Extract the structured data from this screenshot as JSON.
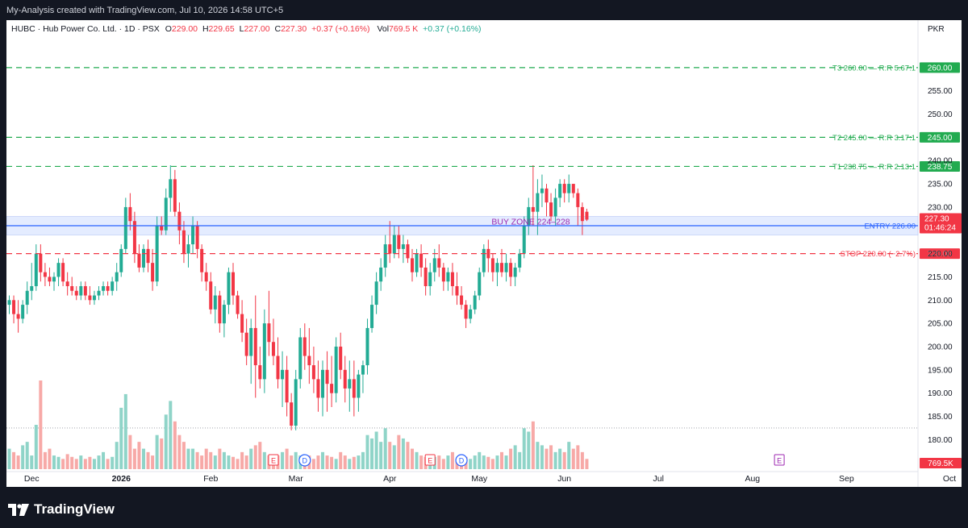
{
  "caption": "My-Analysis created with TradingView.com, Jul 10, 2026 14:58 UTC+5",
  "brand": "TradingView",
  "legend": {
    "symbol": "HUBC · Hub Power Co. Ltd. · 1D · PSX",
    "o_label": "O",
    "o_value": "229.00",
    "h_label": "H",
    "h_value": "229.65",
    "l_label": "L",
    "l_value": "227.00",
    "c_label": "C",
    "c_value": "227.30",
    "change": "+0.37 (+0.16%)",
    "vol_label": "Vol",
    "vol_value": "769.5 K",
    "vol_change": "+0.37 (+0.16%)"
  },
  "colors": {
    "up": "#22ab94",
    "down": "#f23645",
    "vol_up": "#8fd4c8",
    "vol_down": "#f7a9a7",
    "target": "#22ab50",
    "stop": "#f23645",
    "entry": "#2962ff",
    "zone_fill": "#dbe6ff",
    "zone_text": "#9c27b0",
    "last_price": "#f23645"
  },
  "chart_data": {
    "type": "candlestick",
    "currency": "PKR",
    "y_axis": {
      "range": [
        174,
        265
      ],
      "ticks": [
        180.0,
        185.0,
        190.0,
        195.0,
        200.0,
        205.0,
        210.0,
        215.0,
        220.0,
        225.0,
        230.0,
        235.0,
        240.0,
        250.0,
        255.0
      ],
      "tick_labels": [
        "180.00",
        "185.00",
        "190.00",
        "195.00",
        "200.00",
        "205.00",
        "210.00",
        "215.00",
        "220.00",
        "225.00",
        "230.00",
        "235.00",
        "240.00",
        "250.00",
        "255.00"
      ]
    },
    "x_axis": {
      "labels": [
        {
          "text": "Dec",
          "bar": 5,
          "bold": false
        },
        {
          "text": "2026",
          "bar": 25,
          "bold": true
        },
        {
          "text": "Feb",
          "bar": 45,
          "bold": false
        },
        {
          "text": "Mar",
          "bar": 64,
          "bold": false
        },
        {
          "text": "Apr",
          "bar": 85,
          "bold": false
        },
        {
          "text": "May",
          "bar": 105,
          "bold": false
        },
        {
          "text": "Jun",
          "bar": 124,
          "bold": false
        },
        {
          "text": "Jul",
          "bar": 145,
          "bold": false
        },
        {
          "text": "Aug",
          "bar": 166,
          "bold": false
        },
        {
          "text": "Sep",
          "bar": 187,
          "bold": false
        },
        {
          "text": "Oct",
          "bar": 210,
          "bold": false
        }
      ]
    },
    "ohlc": [
      [
        209,
        211,
        207,
        210
      ],
      [
        210,
        211,
        205,
        207
      ],
      [
        207,
        210,
        203,
        206
      ],
      [
        206,
        210,
        205,
        209
      ],
      [
        209,
        214,
        207,
        212
      ],
      [
        212,
        218,
        210,
        213
      ],
      [
        213,
        222,
        212,
        220
      ],
      [
        220,
        222,
        214,
        216
      ],
      [
        216,
        218,
        213,
        215
      ],
      [
        215,
        217,
        213,
        214
      ],
      [
        214,
        216,
        212,
        215
      ],
      [
        215,
        219,
        213,
        218
      ],
      [
        218,
        219,
        213,
        214
      ],
      [
        214,
        216,
        211,
        213
      ],
      [
        213,
        215,
        211,
        212
      ],
      [
        212,
        213,
        210,
        211
      ],
      [
        211,
        214,
        210,
        213
      ],
      [
        213,
        214,
        210,
        211
      ],
      [
        211,
        213,
        209,
        210
      ],
      [
        210,
        212,
        209,
        211
      ],
      [
        211,
        213,
        210,
        212
      ],
      [
        212,
        214,
        211,
        213
      ],
      [
        213,
        214,
        211,
        212
      ],
      [
        212,
        215,
        211,
        214
      ],
      [
        214,
        218,
        212,
        216
      ],
      [
        216,
        222,
        215,
        221
      ],
      [
        221,
        232,
        220,
        230
      ],
      [
        230,
        233,
        225,
        227
      ],
      [
        227,
        229,
        218,
        220
      ],
      [
        220,
        222,
        216,
        217
      ],
      [
        217,
        222,
        216,
        221
      ],
      [
        221,
        223,
        216,
        218
      ],
      [
        218,
        221,
        212,
        214
      ],
      [
        214,
        228,
        213,
        226
      ],
      [
        226,
        228,
        224,
        225
      ],
      [
        225,
        234,
        224,
        232
      ],
      [
        232,
        239,
        229,
        236
      ],
      [
        236,
        238,
        228,
        229
      ],
      [
        229,
        231,
        222,
        225
      ],
      [
        225,
        227,
        218,
        220
      ],
      [
        220,
        224,
        217,
        222
      ],
      [
        222,
        228,
        220,
        226
      ],
      [
        226,
        227,
        219,
        221
      ],
      [
        221,
        222,
        214,
        216
      ],
      [
        216,
        218,
        212,
        214
      ],
      [
        214,
        216,
        207,
        208
      ],
      [
        208,
        213,
        205,
        211
      ],
      [
        211,
        212,
        203,
        205
      ],
      [
        205,
        210,
        202,
        209
      ],
      [
        209,
        217,
        207,
        216
      ],
      [
        216,
        218,
        209,
        211
      ],
      [
        211,
        212,
        206,
        207
      ],
      [
        207,
        210,
        201,
        203
      ],
      [
        203,
        206,
        196,
        198
      ],
      [
        198,
        206,
        192,
        204
      ],
      [
        204,
        211,
        189,
        196
      ],
      [
        196,
        200,
        191,
        193
      ],
      [
        193,
        208,
        190,
        205
      ],
      [
        205,
        212,
        198,
        201
      ],
      [
        201,
        206,
        196,
        198
      ],
      [
        198,
        202,
        191,
        193
      ],
      [
        193,
        199,
        187,
        195
      ],
      [
        195,
        198,
        185,
        188
      ],
      [
        188,
        190,
        182,
        183
      ],
      [
        183,
        195,
        182,
        193
      ],
      [
        193,
        204,
        191,
        202
      ],
      [
        202,
        205,
        195,
        198
      ],
      [
        198,
        204,
        192,
        196
      ],
      [
        196,
        200,
        190,
        193
      ],
      [
        193,
        197,
        186,
        189
      ],
      [
        189,
        197,
        185,
        195
      ],
      [
        195,
        199,
        186,
        192
      ],
      [
        192,
        198,
        187,
        190
      ],
      [
        190,
        202,
        188,
        200
      ],
      [
        200,
        203,
        193,
        195
      ],
      [
        195,
        198,
        188,
        191
      ],
      [
        191,
        197,
        186,
        193
      ],
      [
        193,
        197,
        185,
        189
      ],
      [
        189,
        195,
        186,
        194
      ],
      [
        194,
        197,
        190,
        196
      ],
      [
        196,
        206,
        194,
        204
      ],
      [
        204,
        211,
        203,
        209
      ],
      [
        209,
        216,
        207,
        214
      ],
      [
        214,
        219,
        212,
        217
      ],
      [
        217,
        224,
        215,
        222
      ],
      [
        222,
        227,
        218,
        220
      ],
      [
        220,
        226,
        219,
        224
      ],
      [
        224,
        226,
        219,
        221
      ],
      [
        221,
        224,
        218,
        222
      ],
      [
        222,
        223,
        218,
        219
      ],
      [
        219,
        221,
        214,
        216
      ],
      [
        216,
        221,
        215,
        220
      ],
      [
        220,
        222,
        215,
        217
      ],
      [
        217,
        219,
        211,
        213
      ],
      [
        213,
        218,
        211,
        216
      ],
      [
        216,
        221,
        214,
        219
      ],
      [
        219,
        222,
        215,
        217
      ],
      [
        217,
        218,
        212,
        214
      ],
      [
        214,
        217,
        212,
        216
      ],
      [
        216,
        218,
        211,
        213
      ],
      [
        213,
        216,
        209,
        211
      ],
      [
        211,
        213,
        208,
        209
      ],
      [
        209,
        210,
        204,
        206
      ],
      [
        206,
        209,
        205,
        208
      ],
      [
        208,
        212,
        207,
        211
      ],
      [
        211,
        217,
        210,
        216
      ],
      [
        216,
        222,
        215,
        221
      ],
      [
        221,
        223,
        216,
        219
      ],
      [
        219,
        220,
        214,
        216
      ],
      [
        216,
        219,
        213,
        218
      ],
      [
        218,
        221,
        215,
        216
      ],
      [
        216,
        220,
        214,
        218
      ],
      [
        218,
        219,
        213,
        215
      ],
      [
        215,
        218,
        213,
        217
      ],
      [
        217,
        221,
        216,
        220
      ],
      [
        220,
        228,
        219,
        226
      ],
      [
        226,
        232,
        224,
        230
      ],
      [
        230,
        239,
        226,
        229
      ],
      [
        229,
        236,
        224,
        233
      ],
      [
        233,
        237,
        230,
        234
      ],
      [
        234,
        235,
        228,
        231
      ],
      [
        231,
        233,
        227,
        228
      ],
      [
        228,
        234,
        226,
        232
      ],
      [
        232,
        236,
        230,
        235
      ],
      [
        235,
        236,
        231,
        233
      ],
      [
        233,
        237,
        231,
        235
      ],
      [
        235,
        235,
        232,
        233
      ],
      [
        233,
        234,
        226,
        230
      ],
      [
        230,
        231,
        224,
        227
      ],
      [
        229,
        229.65,
        227,
        227.3
      ]
    ],
    "volume": [
      30,
      25,
      20,
      35,
      40,
      20,
      65,
      130,
      25,
      30,
      20,
      18,
      15,
      22,
      18,
      15,
      20,
      15,
      18,
      15,
      20,
      25,
      15,
      18,
      40,
      90,
      110,
      50,
      30,
      40,
      30,
      25,
      20,
      50,
      45,
      80,
      100,
      70,
      50,
      40,
      30,
      30,
      25,
      20,
      30,
      25,
      20,
      30,
      25,
      20,
      18,
      15,
      25,
      20,
      30,
      35,
      40,
      25,
      20,
      15,
      20,
      25,
      30,
      20,
      25,
      20,
      18,
      20,
      15,
      20,
      25,
      20,
      18,
      15,
      25,
      20,
      15,
      18,
      20,
      25,
      50,
      45,
      55,
      40,
      60,
      40,
      35,
      50,
      45,
      40,
      30,
      25,
      20,
      18,
      15,
      18,
      20,
      15,
      20,
      25,
      15,
      20,
      18,
      15,
      20,
      25,
      20,
      18,
      15,
      20,
      25,
      20,
      30,
      35,
      25,
      60,
      55,
      70,
      40,
      35,
      30,
      35,
      25,
      30,
      25,
      40,
      30,
      35,
      25,
      15
    ],
    "volume_labels": {
      "current": "769.5K"
    },
    "levels": [
      {
        "name": "T3",
        "price": 260.0,
        "label": "T3 260.00 — R:R 5.67:1",
        "tag": "260.00",
        "kind": "target"
      },
      {
        "name": "T2",
        "price": 245.0,
        "label": "T2 245.00 — R:R 3.17:1",
        "tag": "245.00",
        "kind": "target"
      },
      {
        "name": "T1",
        "price": 238.75,
        "label": "T1 238.75 — R:R 2.13:1",
        "tag": "238.75",
        "kind": "target"
      },
      {
        "name": "ENTRY",
        "price": 226.0,
        "label": "ENTRY 226.00",
        "tag": "226.00",
        "kind": "entry"
      },
      {
        "name": "STOP",
        "price": 220.0,
        "label": "STOP 220.00 (−2.7%)",
        "tag": "220.00",
        "kind": "stop"
      }
    ],
    "buy_zone": {
      "low": 224.0,
      "high": 228.0,
      "label": "BUY ZONE 224–228"
    },
    "last_price": {
      "value": "227.30",
      "countdown": "01:46:24",
      "price": 227.3
    },
    "dotted_level": 182.5,
    "events": [
      {
        "type": "earnings",
        "glyph": "E",
        "bar": 59
      },
      {
        "type": "dividend",
        "glyph": "D",
        "bar": 66
      },
      {
        "type": "earnings",
        "glyph": "E",
        "bar": 94
      },
      {
        "type": "dividend",
        "glyph": "D",
        "bar": 101
      },
      {
        "type": "earnings",
        "glyph": "E",
        "bar": 172,
        "future": true
      }
    ],
    "grid": false
  }
}
